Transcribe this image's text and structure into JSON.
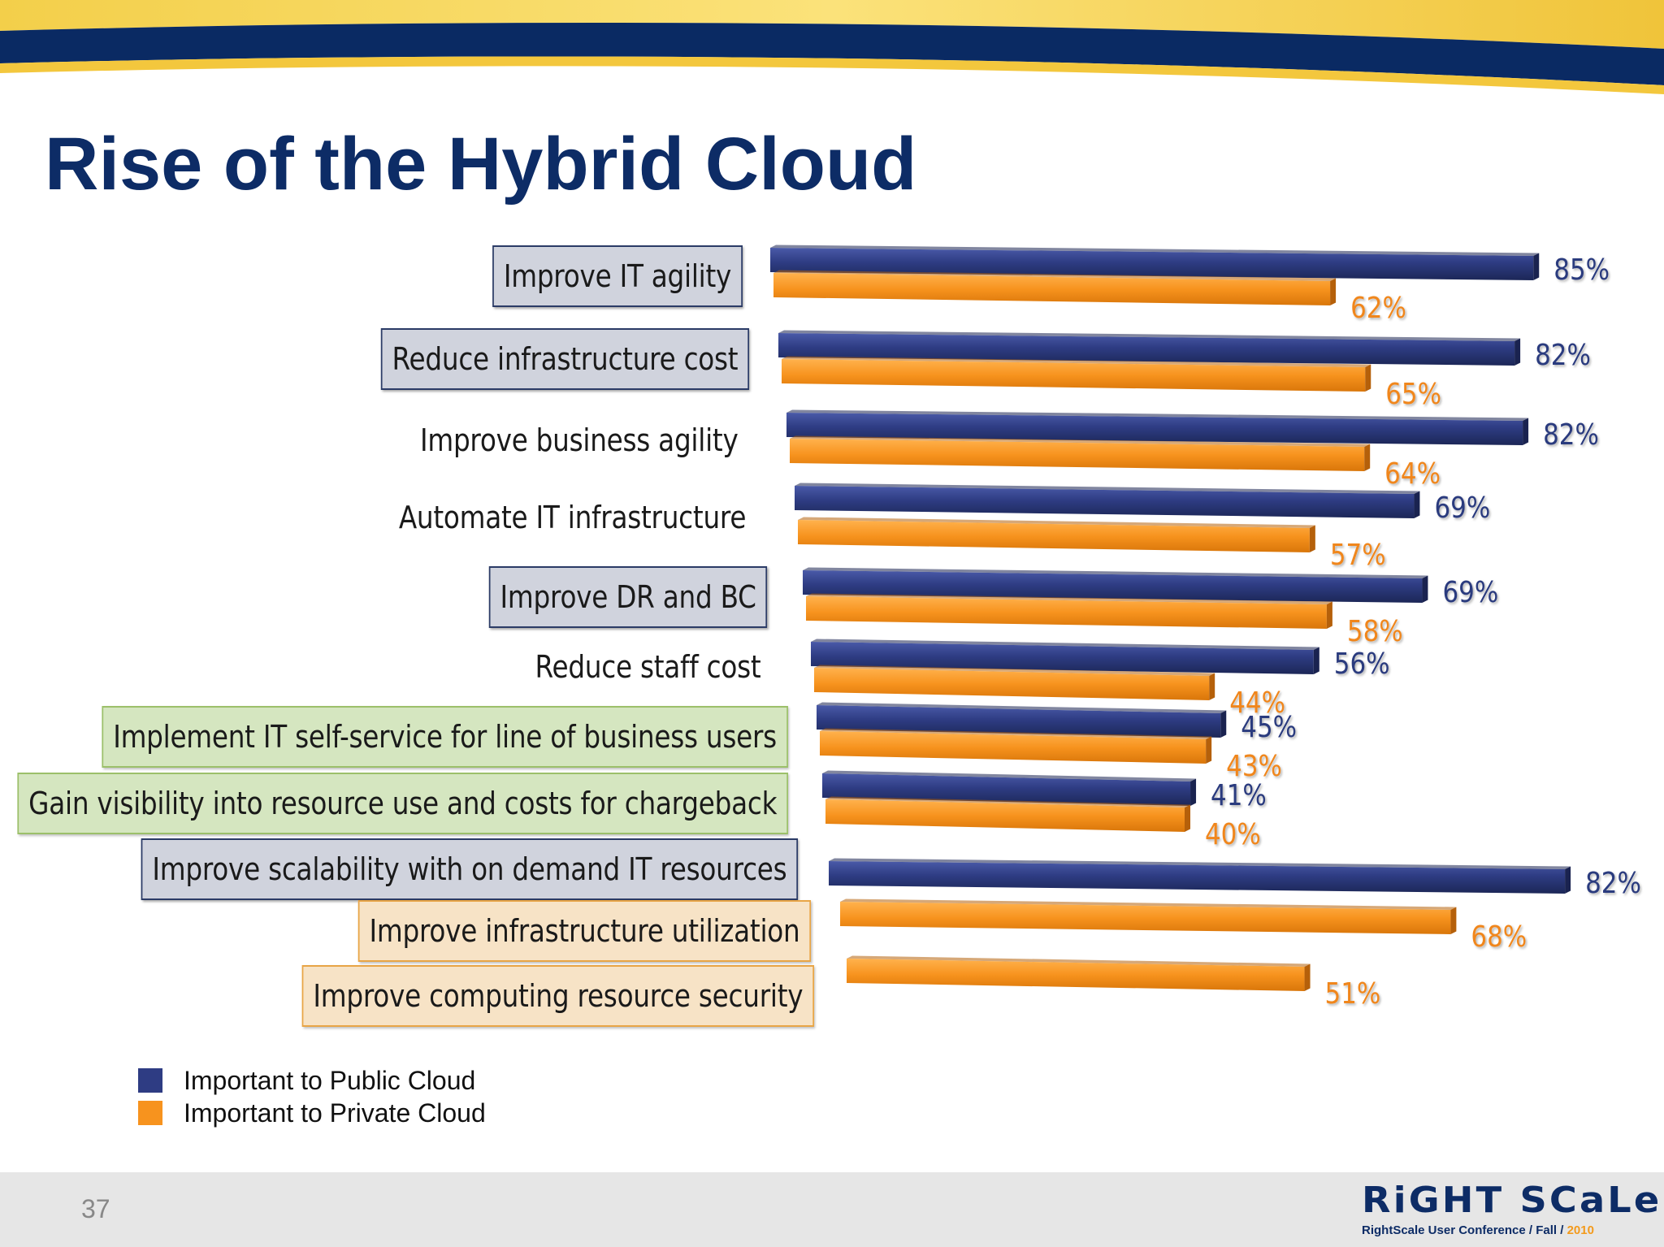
{
  "slide": {
    "title": "Rise of the Hybrid Cloud",
    "page_number": "37"
  },
  "colors": {
    "public": "#2e3c83",
    "private": "#f7931e",
    "title": "#0d2c66"
  },
  "legend": {
    "public_label": "Important to Public Cloud",
    "private_label": "Important to Private Cloud"
  },
  "footer": {
    "logo_word": "RiGHT SCaLe",
    "logo_tagline": "RightScale User Conference / Fall / ",
    "logo_year": "2010"
  },
  "chart_data": {
    "type": "bar",
    "orientation": "horizontal",
    "categories": [
      "Improve IT agility",
      "Reduce infrastructure cost",
      "Improve business agility",
      "Automate IT infrastructure",
      "Improve DR and BC",
      "Reduce staff cost",
      "Implement IT self-service for line of business users",
      "Gain visibility into resource use and costs for chargeback",
      "Improve scalability with on demand IT resources",
      "Improve infrastructure utilization",
      "Improve computing resource security"
    ],
    "category_box_styles": [
      "blue",
      "blue",
      "none",
      "none",
      "blue",
      "none",
      "green",
      "green",
      "blue",
      "orange",
      "orange"
    ],
    "series": [
      {
        "name": "Important to Public Cloud",
        "values": [
          85,
          82,
          82,
          69,
          69,
          56,
          45,
          41,
          82,
          null,
          null
        ],
        "labels": [
          "85%",
          "82%",
          "82%",
          "69%",
          "69%",
          "56%",
          "45%",
          "41%",
          "82%",
          "",
          ""
        ]
      },
      {
        "name": "Important to Private Cloud",
        "values": [
          62,
          65,
          64,
          57,
          58,
          44,
          43,
          40,
          null,
          68,
          51
        ],
        "labels": [
          "62%",
          "65%",
          "64%",
          "57%",
          "58%",
          "44%",
          "43%",
          "40%",
          "",
          "68%",
          "51%"
        ]
      }
    ],
    "value_unit": "%",
    "xlim": [
      0,
      100
    ],
    "legend_position": "bottom-left",
    "grid": false,
    "style": "3d-perspective"
  }
}
